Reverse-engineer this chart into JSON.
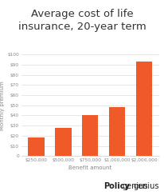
{
  "title": "Average cost of life\ninsurance, 20-year term",
  "categories": [
    "$250,000",
    "$500,000",
    "$750,000",
    "$1,000,000",
    "$2,000,000"
  ],
  "values": [
    18,
    28,
    40,
    48,
    93
  ],
  "bar_color": "#f05a28",
  "xlabel": "Benefit amount",
  "ylabel": "Monthly premium",
  "ylim": [
    0,
    100
  ],
  "yticks": [
    0,
    10,
    20,
    30,
    40,
    50,
    60,
    70,
    80,
    90,
    100
  ],
  "ytick_labels": [
    "0",
    "$10",
    "$20",
    "$30",
    "$40",
    "$50",
    "$60",
    "$70",
    "$80",
    "$90",
    "$100"
  ],
  "background_color": "#ffffff",
  "grid_color": "#dddddd",
  "title_fontsize": 9.5,
  "axis_label_fontsize": 5,
  "tick_fontsize": 4.2,
  "logo_bold": "Policy",
  "logo_regular": "genius",
  "logo_fontsize": 7
}
